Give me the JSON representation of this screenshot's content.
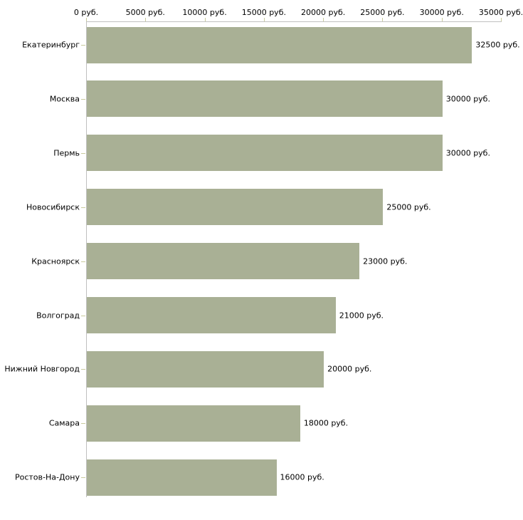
{
  "chart_data": {
    "type": "bar",
    "orientation": "horizontal",
    "title": "",
    "xlabel": "",
    "ylabel": "",
    "grid": false,
    "legend": false,
    "categories": [
      "Екатеринбург",
      "Москва",
      "Пермь",
      "Новосибирск",
      "Красноярск",
      "Волгоград",
      "Нижний Новгород",
      "Самара",
      "Ростов-На-Дону"
    ],
    "values": [
      32500,
      30000,
      30000,
      25000,
      23000,
      21000,
      20000,
      18000,
      16000
    ],
    "value_labels": [
      "32500 руб.",
      "30000 руб.",
      "30000 руб.",
      "25000 руб.",
      "23000 руб.",
      "21000 руб.",
      "20000 руб.",
      "18000 руб.",
      "16000 руб."
    ],
    "x_axis": {
      "position": "top",
      "min": 0,
      "max": 35000,
      "ticks": [
        0,
        5000,
        10000,
        15000,
        20000,
        25000,
        30000,
        35000
      ],
      "tick_labels": [
        "0 руб.",
        "5000 руб.",
        "10000 руб.",
        "15000 руб.",
        "20000 руб.",
        "25000 руб.",
        "30000 руб.",
        "35000 руб."
      ]
    },
    "colors": {
      "bar": "#a9b095",
      "axis_line": "#c0c0c0",
      "tick_marks": "#c9cb9e",
      "text": "#000000",
      "background": "#ffffff"
    }
  }
}
